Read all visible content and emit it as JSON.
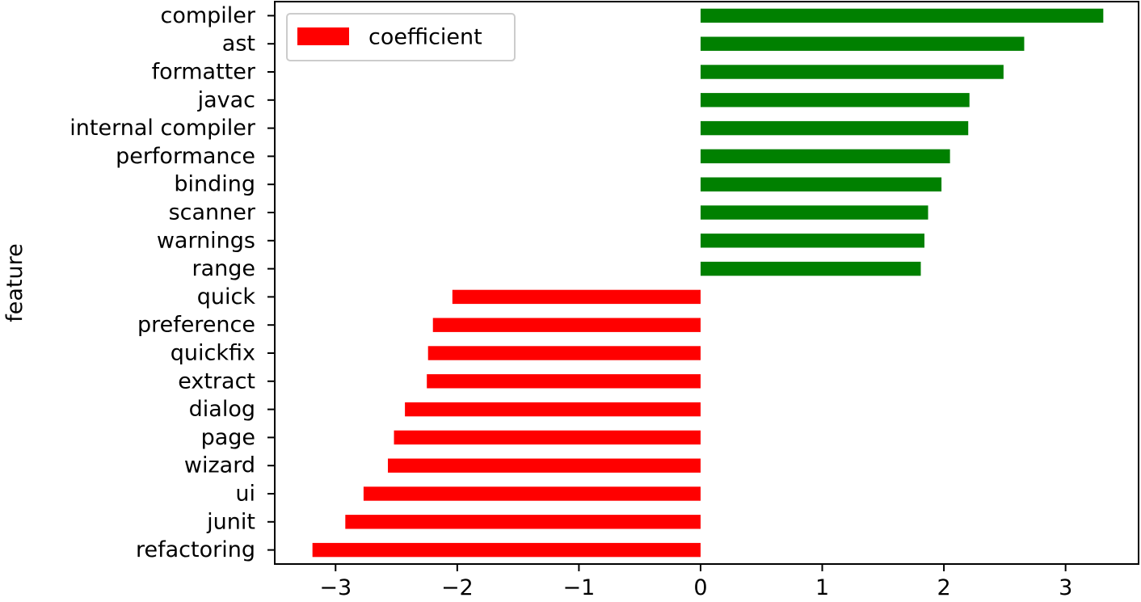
{
  "chart_data": {
    "type": "bar",
    "orientation": "horizontal",
    "title": "",
    "xlabel": "",
    "ylabel": "feature",
    "xlim": [
      -3.5,
      3.6
    ],
    "xticks": [
      -3,
      -2,
      -1,
      0,
      1,
      2,
      3
    ],
    "xtick_labels": [
      "−3",
      "−2",
      "−1",
      "0",
      "1",
      "2",
      "3"
    ],
    "grid": false,
    "legend": {
      "position": "top-left",
      "entries": [
        "coefficient"
      ]
    },
    "series": [
      {
        "name": "coefficient",
        "categories": [
          "compiler",
          "ast",
          "formatter",
          "javac",
          "internal compiler",
          "performance",
          "binding",
          "scanner",
          "warnings",
          "range",
          "quick",
          "preference",
          "quickfix",
          "extract",
          "dialog",
          "page",
          "wizard",
          "ui",
          "junit",
          "refactoring"
        ],
        "values": [
          3.31,
          2.66,
          2.49,
          2.21,
          2.2,
          2.05,
          1.98,
          1.87,
          1.84,
          1.81,
          -2.04,
          -2.2,
          -2.24,
          -2.25,
          -2.43,
          -2.52,
          -2.57,
          -2.77,
          -2.92,
          -3.19
        ]
      }
    ],
    "colors": {
      "positive": "#008000",
      "negative": "#ff0000",
      "legend_swatch": "#ff0000"
    }
  }
}
